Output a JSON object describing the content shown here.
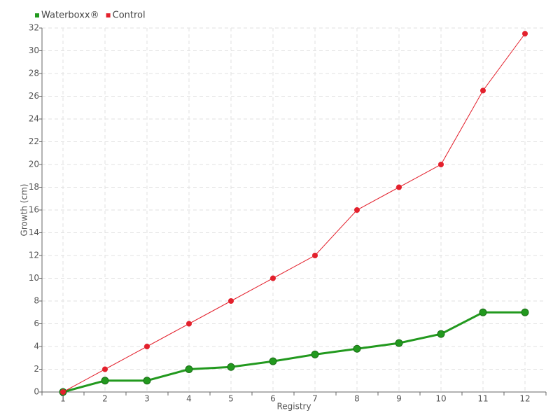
{
  "chart_data": {
    "type": "line",
    "categories": [
      "1",
      "2",
      "3",
      "4",
      "5",
      "6",
      "7",
      "8",
      "9",
      "10",
      "11",
      "12"
    ],
    "series": [
      {
        "name": "Waterboxx®",
        "color": "#22991e",
        "values": [
          0,
          1,
          1,
          2,
          2.2,
          2.7,
          3.3,
          3.8,
          4.3,
          5.1,
          7,
          7
        ]
      },
      {
        "name": "Control",
        "color": "#e3202c",
        "values": [
          0,
          2,
          4,
          6,
          8,
          10,
          12,
          16,
          18,
          20,
          26.5,
          31.5
        ]
      }
    ],
    "y_label": "Growth (cm)",
    "x_label": "Registry",
    "ylim": [
      0,
      32
    ],
    "yticks": [
      0,
      2,
      4,
      6,
      8,
      10,
      12,
      14,
      16,
      18,
      20,
      22,
      24,
      26,
      28,
      30,
      32
    ],
    "grid": true,
    "legend": "top-left"
  }
}
